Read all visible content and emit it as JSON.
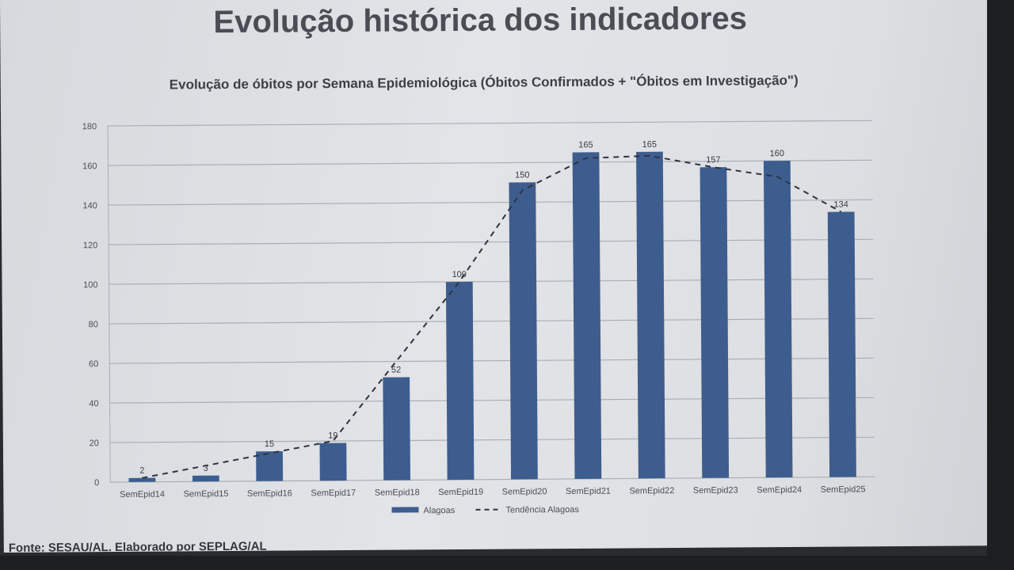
{
  "page_title": "Evolução histórica dos indicadores",
  "source_note": "Fonte: SESAU/AL. Elaborado por SEPLAG/AL",
  "colors": {
    "bar": "#3e5d8f",
    "trend": "#2e3440",
    "grid": "#a9adb6"
  },
  "chart_data": {
    "type": "bar",
    "title": "Evolução de óbitos por Semana Epidemiológica (Óbitos Confirmados + \"Óbitos em Investigação\")",
    "xlabel": "",
    "ylabel": "",
    "ylim": [
      0,
      180
    ],
    "yticks": [
      0,
      20,
      40,
      60,
      80,
      100,
      120,
      140,
      160,
      180
    ],
    "grid": true,
    "legend_position": "bottom",
    "categories": [
      "SemEpid14",
      "SemEpid15",
      "SemEpid16",
      "SemEpid17",
      "SemEpid18",
      "SemEpid19",
      "SemEpid20",
      "SemEpid21",
      "SemEpid22",
      "SemEpid23",
      "SemEpid24",
      "SemEpid25"
    ],
    "series": [
      {
        "name": "Alagoas",
        "kind": "bar",
        "values": [
          2,
          3,
          15,
          19,
          52,
          100,
          150,
          165,
          165,
          157,
          160,
          134
        ]
      },
      {
        "name": "Tendência Alagoas",
        "kind": "line-dashed",
        "values": [
          2,
          8,
          14,
          20,
          60,
          100,
          146,
          162,
          163,
          157,
          152,
          134
        ]
      }
    ]
  }
}
